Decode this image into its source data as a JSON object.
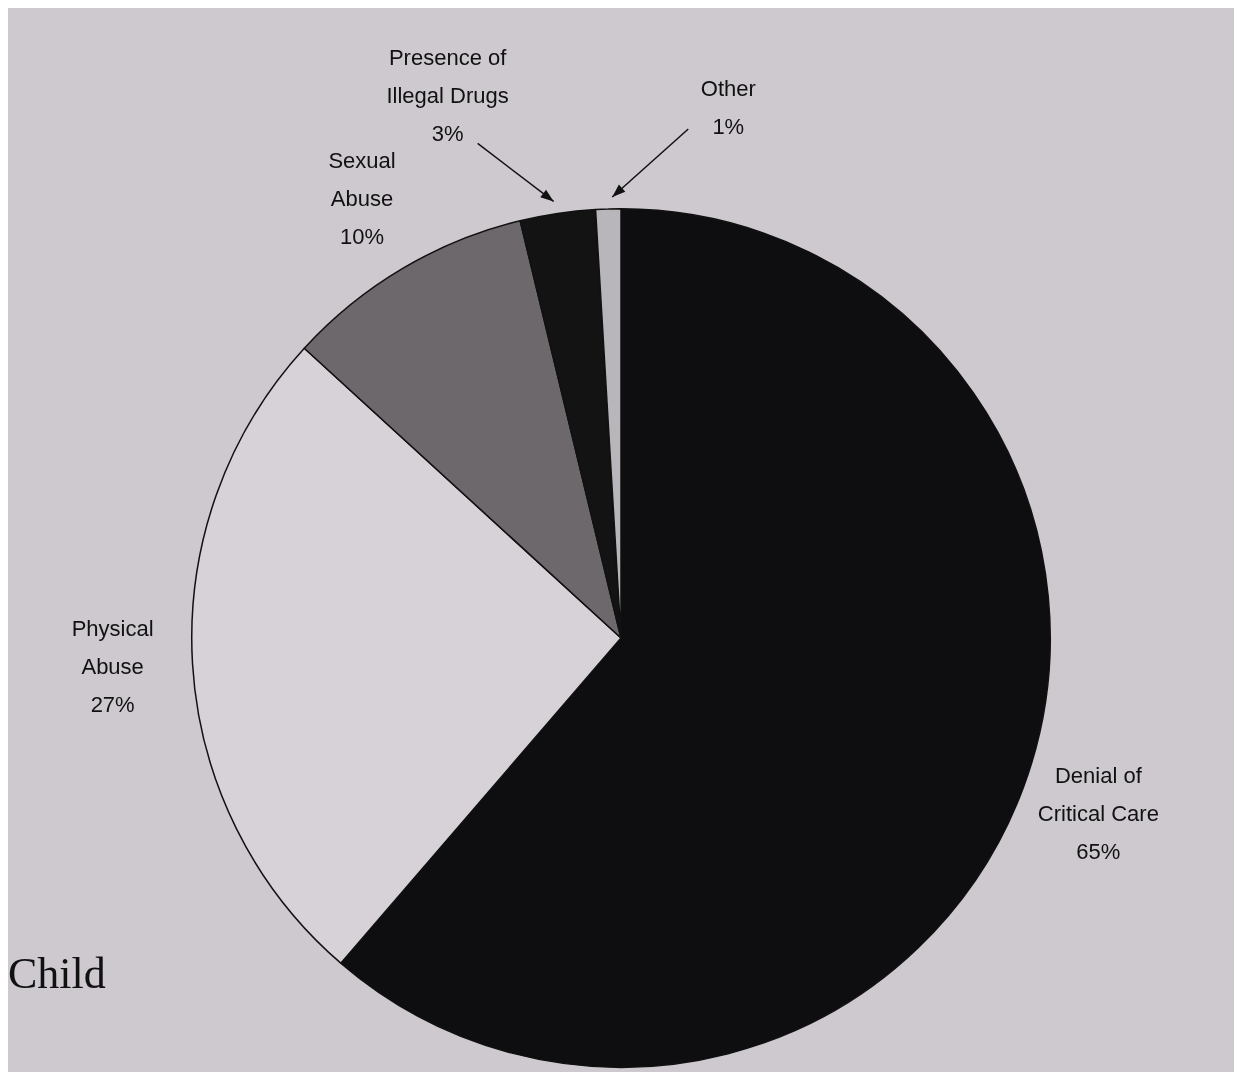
{
  "chart_data": {
    "type": "pie",
    "categories": [
      "Denial of Critical Care",
      "Physical Abuse",
      "Sexual Abuse",
      "Presence of Illegal Drugs",
      "Other"
    ],
    "values": [
      65,
      27,
      10,
      3,
      1
    ],
    "colors": [
      "#0e0d0f",
      "#d6d2d8",
      "#6c686c",
      "#141314",
      "#b9b6bb"
    ],
    "value_labels": [
      "65%",
      "27%",
      "10%",
      "3%",
      "1%"
    ],
    "legend": false,
    "annotations": [
      "Child"
    ]
  }
}
